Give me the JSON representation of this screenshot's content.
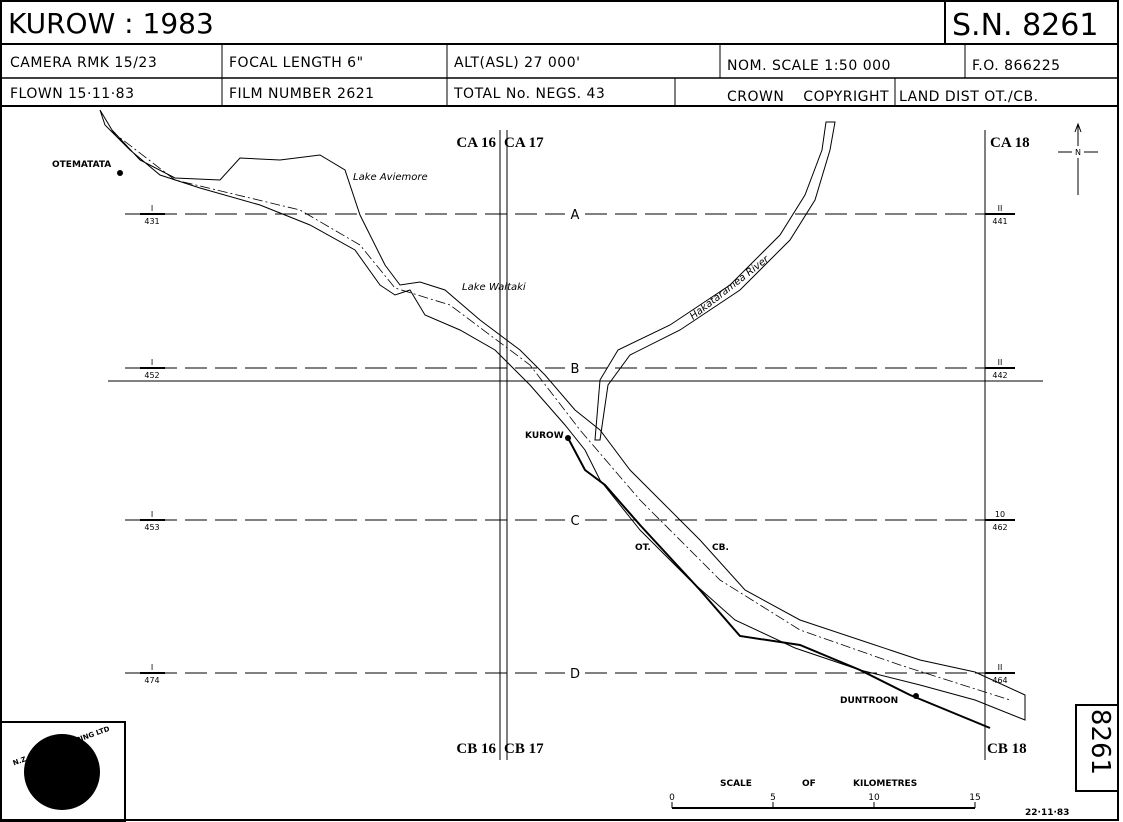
{
  "header": {
    "title": "KUROW : 1983",
    "sn": "S.N. 8261"
  },
  "info": {
    "row1": [
      "CAMERA RMK 15/23",
      "FOCAL LENGTH 6\"",
      "ALT(ASL) 27 000'",
      "NOM. SCALE 1:50 000",
      "F.O. 866225"
    ],
    "row2": [
      "FLOWN 15·11·83",
      "FILM NUMBER 2621",
      "TOTAL No. NEGS. 43",
      "CROWN COPYRIGHT",
      "LAND DIST OT./CB."
    ]
  },
  "columns": {
    "top": [
      "CA 16",
      "CA 17",
      "CA 18"
    ],
    "bottom": [
      "CB 16",
      "CB 17",
      "CB 18"
    ]
  },
  "runs": [
    {
      "label": "A",
      "left_top": "I",
      "left_bottom": "431",
      "right_top": "II",
      "right_bottom": "441"
    },
    {
      "label": "B",
      "left_top": "I",
      "left_bottom": "452",
      "right_top": "II",
      "right_bottom": "442"
    },
    {
      "label": "C",
      "left_top": "I",
      "left_bottom": "453",
      "right_top": "10",
      "right_bottom": "462"
    },
    {
      "label": "D",
      "left_top": "I",
      "left_bottom": "474",
      "right_top": "II",
      "right_bottom": "464"
    }
  ],
  "places": {
    "otematata": "OTEMATATA",
    "aviemore": "Lake Aviemore",
    "waitaki": "Lake Waitaki",
    "hakataramea": "Hakataramea River",
    "kurow": "KUROW",
    "ot": "OT.",
    "cb": "CB.",
    "duntroon": "DUNTROON"
  },
  "scale": {
    "words": [
      "SCALE",
      "OF",
      "KILOMETRES"
    ],
    "ticks": [
      0,
      5,
      10,
      15
    ]
  },
  "logo": "N.Z. AERIAL MAPPING LTD",
  "side_number": "8261",
  "date": "22·11·83",
  "north": "N"
}
